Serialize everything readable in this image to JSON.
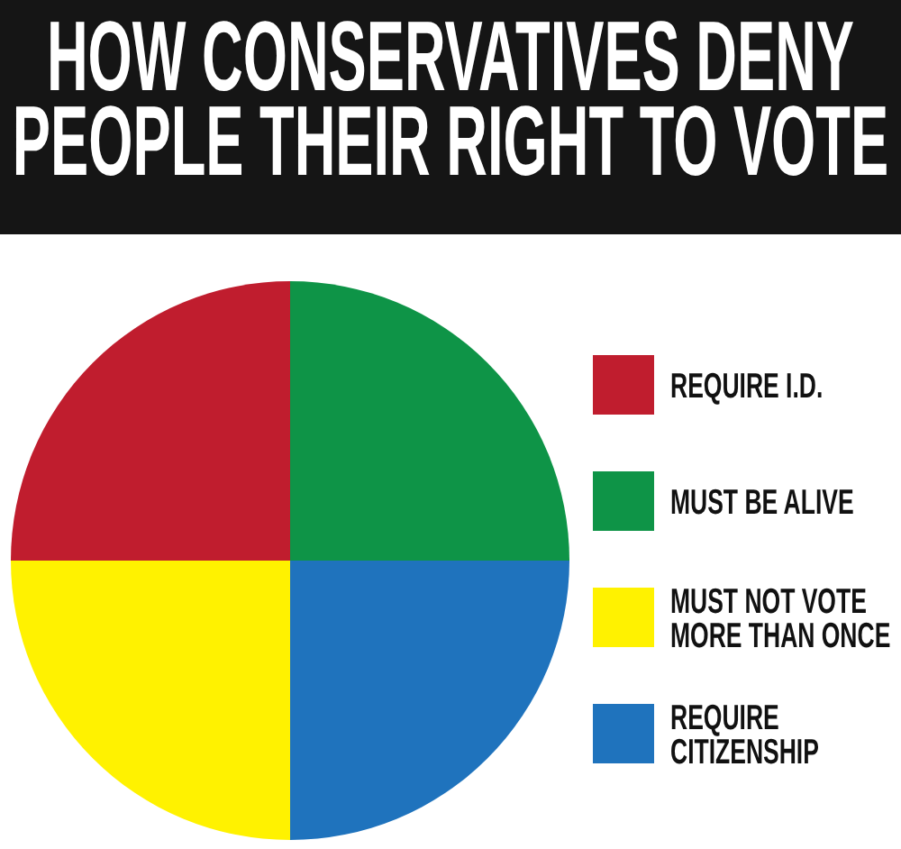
{
  "chart_data": {
    "type": "pie",
    "title": "HOW CONSERVATIVES DENY PEOPLE THEIR RIGHT TO VOTE",
    "categories": [
      "REQUIRE I.D.",
      "MUST BE ALIVE",
      "MUST NOT VOTE MORE THAN ONCE",
      "REQUIRE CITIZENSHIP"
    ],
    "values": [
      25,
      25,
      25,
      25
    ],
    "colors": [
      "#c01d2e",
      "#0e9447",
      "#fff200",
      "#1f73bd"
    ],
    "legend": "right"
  }
}
